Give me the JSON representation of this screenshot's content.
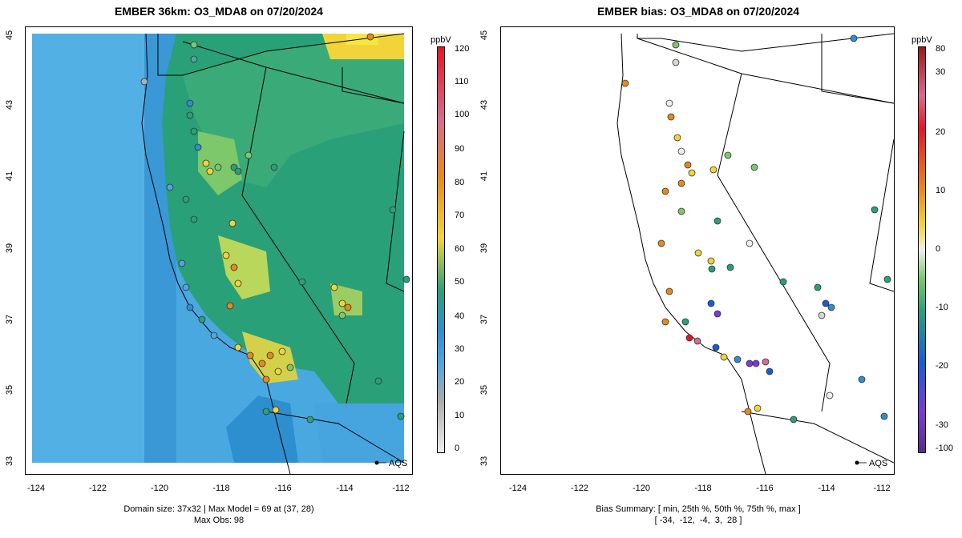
{
  "left_panel": {
    "title": "EMBER 36km: O3_MDA8 on 07/20/2024",
    "footer_line1": "Domain size: 37x32 | Max Model = 69 at (37, 28)",
    "footer_line2": "Max Obs: 98",
    "colorbar_unit": "ppbV",
    "colorbar_ticks": [
      "120",
      "110",
      "100",
      "90",
      "80",
      "70",
      "60",
      "50",
      "40",
      "30",
      "20",
      "10",
      "0"
    ],
    "marker_label": "AQS"
  },
  "right_panel": {
    "title": "EMBER bias: O3_MDA8 on 07/20/2024",
    "footer_line1": "Bias Summary: [ min, 25th %, 50th %, 75th %, max ]",
    "footer_line2": "[ -34,  -12,  -4,  3,  28 ]",
    "colorbar_unit": "ppbV",
    "colorbar_ticks": [
      "80",
      "30",
      "20",
      "10",
      "0",
      "-10",
      "-20",
      "-30",
      "-100"
    ],
    "marker_label": "AQS"
  },
  "axes": {
    "x_ticks": [
      "-124",
      "-122",
      "-120",
      "-118",
      "-116",
      "-114",
      "-112"
    ],
    "y_ticks": [
      "45",
      "43",
      "41",
      "39",
      "37",
      "35",
      "33"
    ]
  },
  "colors": {
    "ocean_model": "#4aa8e0",
    "land_model": "#2aa079",
    "high_model": "#f2d43a",
    "bias_neg": "#1a5bd6",
    "bias_pos": "#e58a1c"
  }
}
